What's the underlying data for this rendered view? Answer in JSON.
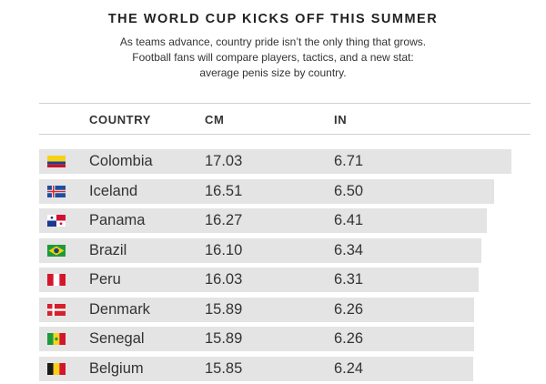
{
  "header": {
    "title": "THE WORLD CUP KICKS OFF THIS SUMMER",
    "subtitle_lines": [
      "As teams advance, country pride isn’t the only thing that grows.",
      "Football fans will compare players, tactics, and a new stat:",
      "average penis size by country."
    ]
  },
  "chart_data": {
    "type": "table",
    "columns": [
      "COUNTRY",
      "CM",
      "IN"
    ],
    "rows": [
      {
        "country": "Colombia",
        "cm": "17.03",
        "in": "6.71",
        "flag": "colombia-flag-icon"
      },
      {
        "country": "Iceland",
        "cm": "16.51",
        "in": "6.50",
        "flag": "iceland-flag-icon"
      },
      {
        "country": "Panama",
        "cm": "16.27",
        "in": "6.41",
        "flag": "panama-flag-icon"
      },
      {
        "country": "Brazil",
        "cm": "16.10",
        "in": "6.34",
        "flag": "brazil-flag-icon"
      },
      {
        "country": "Peru",
        "cm": "16.03",
        "in": "6.31",
        "flag": "peru-flag-icon"
      },
      {
        "country": "Denmark",
        "cm": "15.89",
        "in": "6.26",
        "flag": "denmark-flag-icon"
      },
      {
        "country": "Senegal",
        "cm": "15.89",
        "in": "6.26",
        "flag": "senegal-flag-icon"
      },
      {
        "country": "Belgium",
        "cm": "15.85",
        "in": "6.24",
        "flag": "belgium-flag-icon"
      }
    ],
    "bar_value_column": "cm",
    "bar_color": "#e4e4e4"
  }
}
